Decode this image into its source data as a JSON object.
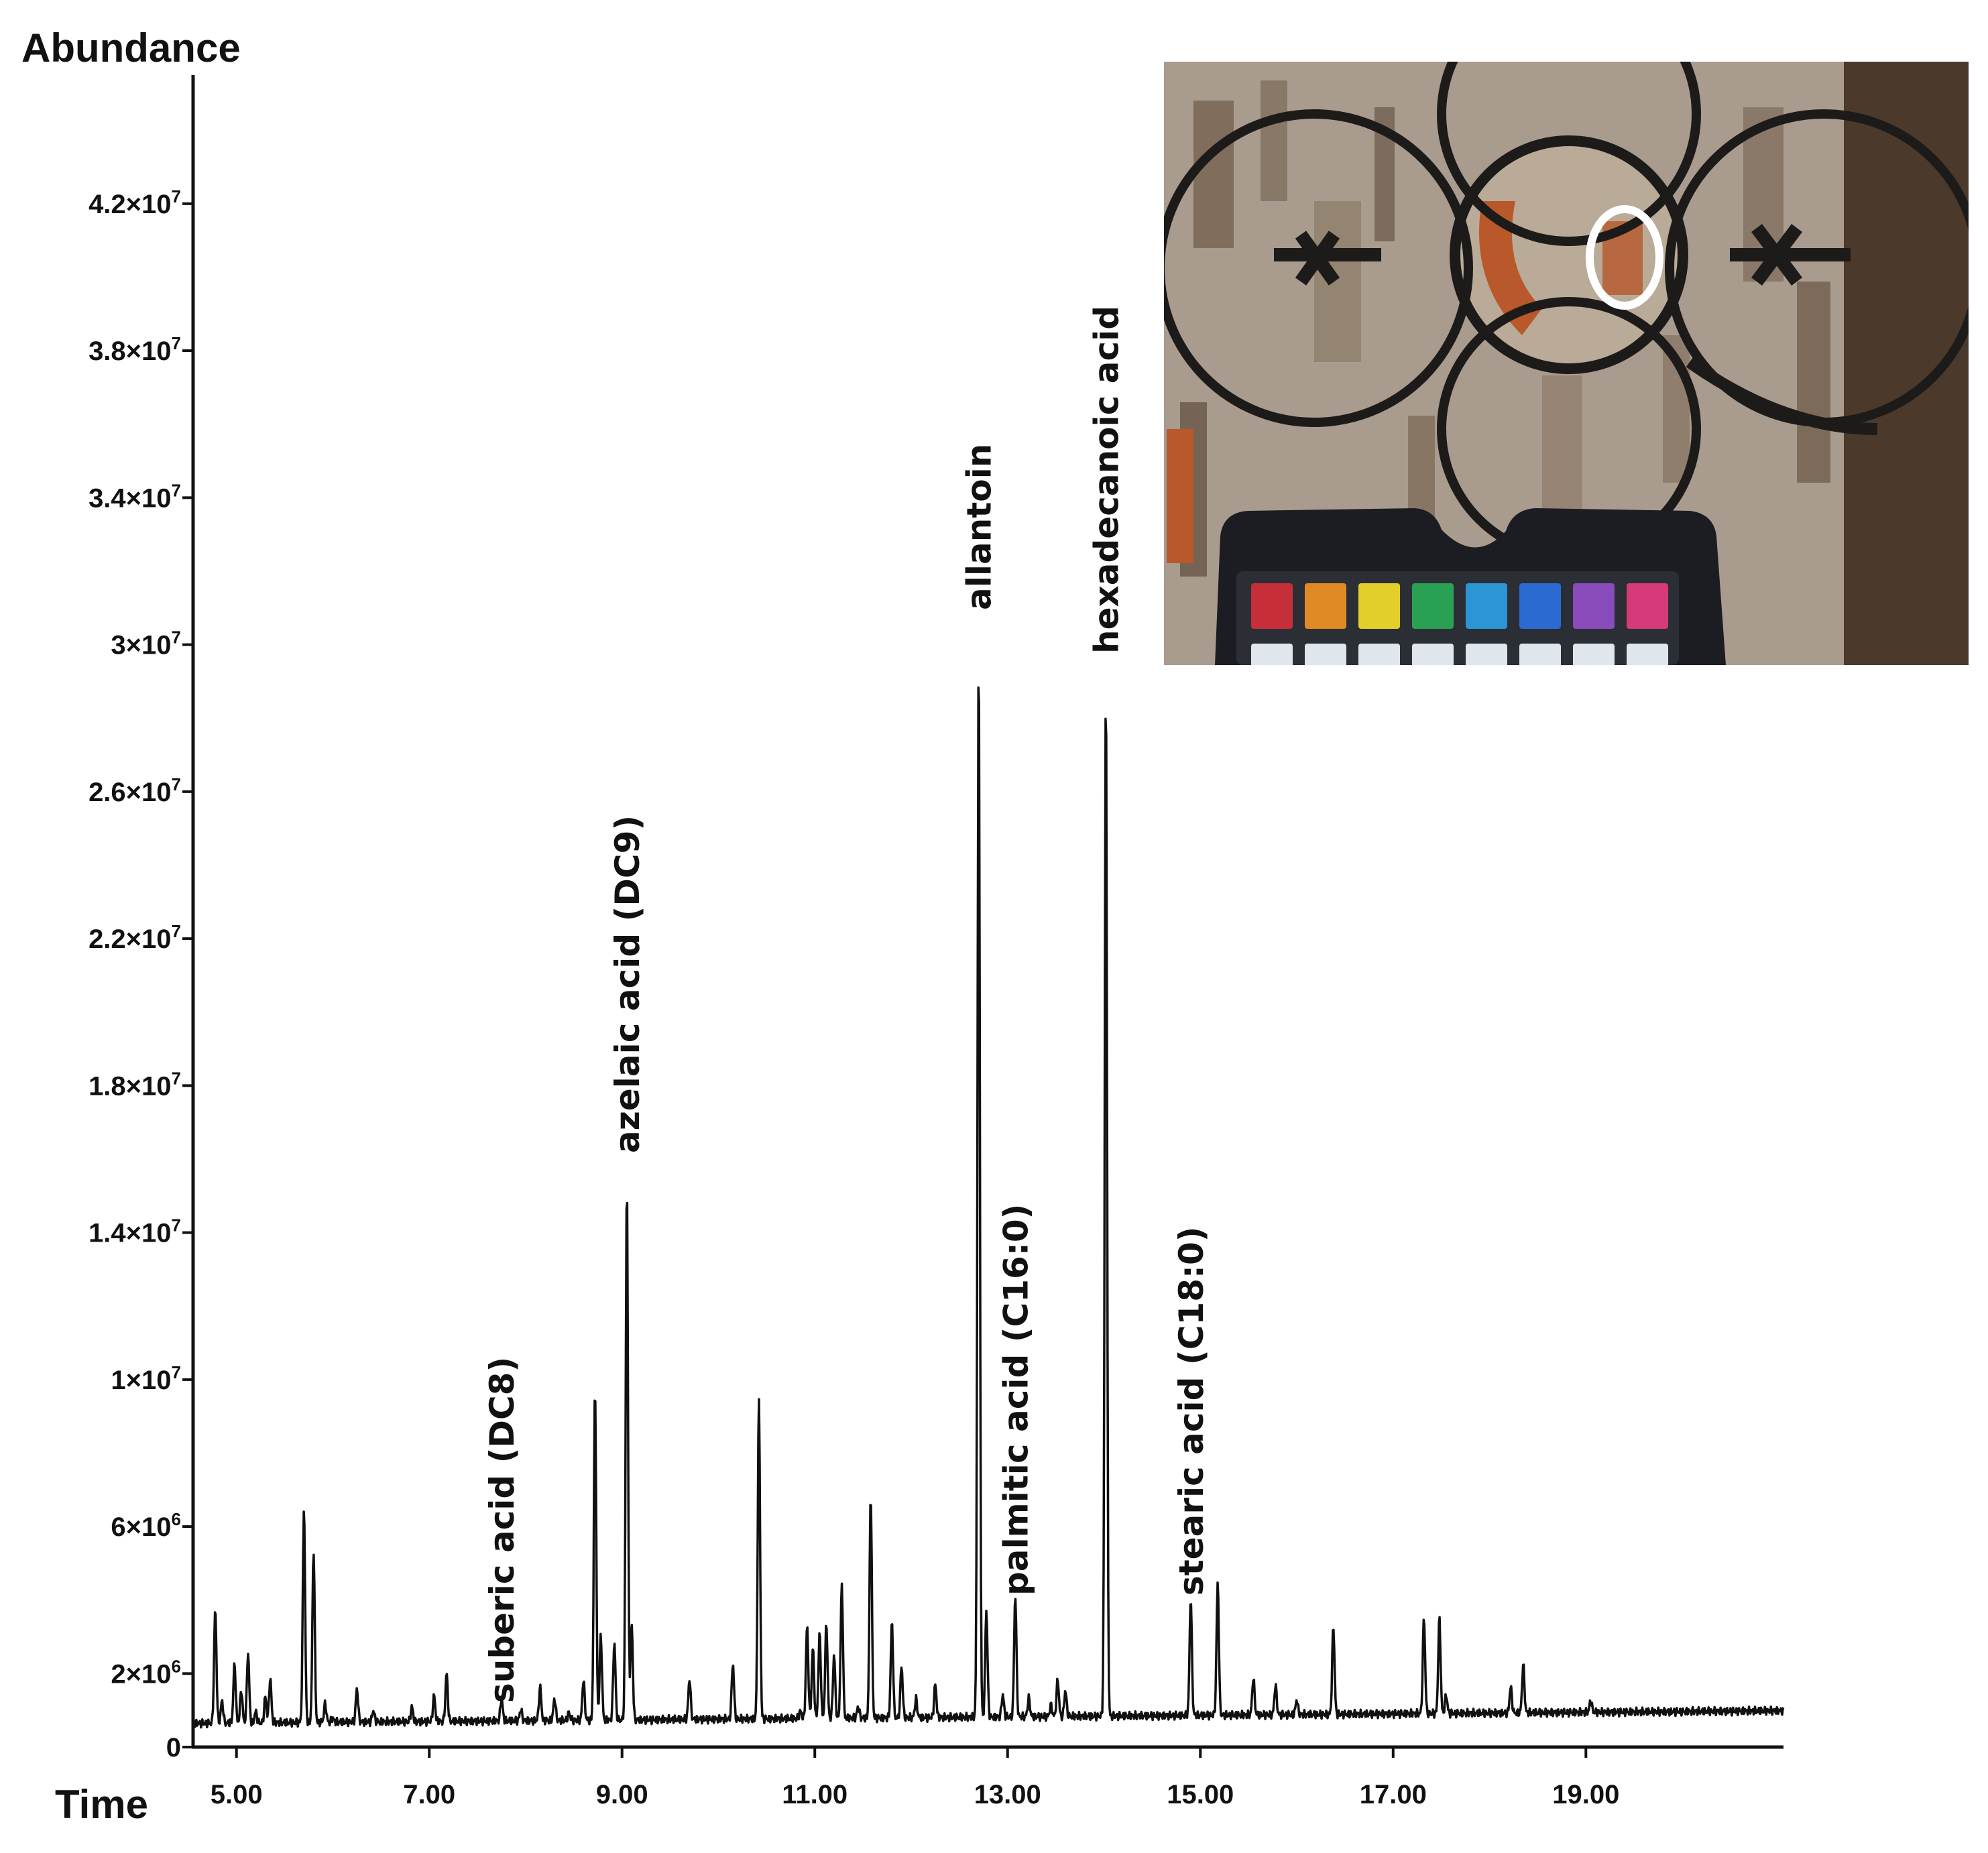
{
  "chart_data": {
    "type": "line",
    "ylabel": "Abundance",
    "xlabel": "Time",
    "xlim": [
      4.55,
      21.05
    ],
    "ylim": [
      0,
      45500000
    ],
    "grid": false,
    "legend": "none",
    "x_ticks": [
      {
        "value": 5.0,
        "label": "5.00"
      },
      {
        "value": 7.0,
        "label": "7.00"
      },
      {
        "value": 9.0,
        "label": "9.00"
      },
      {
        "value": 11.0,
        "label": "11.00"
      },
      {
        "value": 13.0,
        "label": "13.00"
      },
      {
        "value": 15.0,
        "label": "15.00"
      },
      {
        "value": 17.0,
        "label": "17.00"
      },
      {
        "value": 19.0,
        "label": "19.00"
      }
    ],
    "y_ticks": [
      {
        "value": 0,
        "mant": "0",
        "exp": ""
      },
      {
        "value": 2000000,
        "mant": "2×10",
        "exp": "6"
      },
      {
        "value": 6000000,
        "mant": "6×10",
        "exp": "6"
      },
      {
        "value": 10000000,
        "mant": "1×10",
        "exp": "7"
      },
      {
        "value": 14000000,
        "mant": "1.4×10",
        "exp": "7"
      },
      {
        "value": 18000000,
        "mant": "1.8×10",
        "exp": "7"
      },
      {
        "value": 22000000,
        "mant": "2.2×10",
        "exp": "7"
      },
      {
        "value": 26000000,
        "mant": "2.6×10",
        "exp": "7"
      },
      {
        "value": 30000000,
        "mant": "3×10",
        "exp": "7"
      },
      {
        "value": 34000000,
        "mant": "3.4×10",
        "exp": "7"
      },
      {
        "value": 38000000,
        "mant": "3.8×10",
        "exp": "7"
      },
      {
        "value": 42000000,
        "mant": "4.2×10",
        "exp": "7"
      }
    ],
    "baseline": 900000,
    "peaks": [
      {
        "x": 4.78,
        "y": 4000000
      },
      {
        "x": 4.85,
        "y": 1500000
      },
      {
        "x": 4.98,
        "y": 2500000
      },
      {
        "x": 5.05,
        "y": 1800000
      },
      {
        "x": 5.12,
        "y": 2800000
      },
      {
        "x": 5.2,
        "y": 1200000
      },
      {
        "x": 5.3,
        "y": 1600000
      },
      {
        "x": 5.35,
        "y": 2100000
      },
      {
        "x": 5.5,
        "y": 900000
      },
      {
        "x": 5.7,
        "y": 6800000
      },
      {
        "x": 5.8,
        "y": 5600000
      },
      {
        "x": 5.92,
        "y": 1400000
      },
      {
        "x": 6.0,
        "y": 1000000
      },
      {
        "x": 6.1,
        "y": 800000
      },
      {
        "x": 6.25,
        "y": 1800000
      },
      {
        "x": 6.42,
        "y": 1200000
      },
      {
        "x": 6.75,
        "y": 900000
      },
      {
        "x": 6.82,
        "y": 1300000
      },
      {
        "x": 7.05,
        "y": 1600000
      },
      {
        "x": 7.18,
        "y": 2200000
      },
      {
        "x": 7.32,
        "y": 900000
      },
      {
        "x": 7.75,
        "y": 1500000
      },
      {
        "x": 7.95,
        "y": 1200000
      },
      {
        "x": 8.15,
        "y": 1800000
      },
      {
        "x": 8.3,
        "y": 1500000
      },
      {
        "x": 8.45,
        "y": 1100000
      },
      {
        "x": 8.6,
        "y": 2000000
      },
      {
        "x": 8.72,
        "y": 10000000
      },
      {
        "x": 8.78,
        "y": 3200000
      },
      {
        "x": 8.92,
        "y": 3000000
      },
      {
        "x": 9.05,
        "y": 15500000
      },
      {
        "x": 9.1,
        "y": 3500000
      },
      {
        "x": 9.45,
        "y": 900000
      },
      {
        "x": 9.7,
        "y": 2000000
      },
      {
        "x": 10.15,
        "y": 2400000
      },
      {
        "x": 10.42,
        "y": 9600000
      },
      {
        "x": 10.85,
        "y": 1100000
      },
      {
        "x": 10.92,
        "y": 3400000
      },
      {
        "x": 10.98,
        "y": 2800000
      },
      {
        "x": 11.05,
        "y": 3200000
      },
      {
        "x": 11.12,
        "y": 3500000
      },
      {
        "x": 11.2,
        "y": 2600000
      },
      {
        "x": 11.28,
        "y": 4500000
      },
      {
        "x": 11.45,
        "y": 1200000
      },
      {
        "x": 11.58,
        "y": 7000000
      },
      {
        "x": 11.8,
        "y": 3500000
      },
      {
        "x": 11.9,
        "y": 2300000
      },
      {
        "x": 12.05,
        "y": 1400000
      },
      {
        "x": 12.25,
        "y": 1800000
      },
      {
        "x": 12.7,
        "y": 29800000
      },
      {
        "x": 12.78,
        "y": 3800000
      },
      {
        "x": 12.95,
        "y": 1500000
      },
      {
        "x": 13.08,
        "y": 4200000
      },
      {
        "x": 13.22,
        "y": 1400000
      },
      {
        "x": 13.45,
        "y": 1200000
      },
      {
        "x": 13.52,
        "y": 1900000
      },
      {
        "x": 13.6,
        "y": 1600000
      },
      {
        "x": 14.02,
        "y": 29000000
      },
      {
        "x": 14.3,
        "y": 900000
      },
      {
        "x": 14.9,
        "y": 4100000
      },
      {
        "x": 15.18,
        "y": 4500000
      },
      {
        "x": 15.55,
        "y": 1900000
      },
      {
        "x": 15.78,
        "y": 1700000
      },
      {
        "x": 16.0,
        "y": 1300000
      },
      {
        "x": 16.38,
        "y": 3300000
      },
      {
        "x": 16.62,
        "y": 600000
      },
      {
        "x": 17.32,
        "y": 3500000
      },
      {
        "x": 17.48,
        "y": 3500000
      },
      {
        "x": 17.55,
        "y": 1400000
      },
      {
        "x": 17.9,
        "y": 700000
      },
      {
        "x": 18.05,
        "y": 800000
      },
      {
        "x": 18.22,
        "y": 1600000
      },
      {
        "x": 18.35,
        "y": 2200000
      },
      {
        "x": 18.85,
        "y": 700000
      },
      {
        "x": 19.05,
        "y": 1200000
      },
      {
        "x": 19.75,
        "y": 800000
      },
      {
        "x": 20.35,
        "y": 500000
      },
      {
        "x": 20.95,
        "y": 300000
      }
    ],
    "annotations": [
      {
        "text": "suberic acid (DC8)",
        "x": 7.75
      },
      {
        "text": "azelaic acid (DC9)",
        "x": 9.05
      },
      {
        "text": "allantoin",
        "x": 12.7
      },
      {
        "text": "palmitic acid (C16:0)",
        "x": 13.08
      },
      {
        "text": "hexadecanoic acid",
        "x": 14.02
      },
      {
        "text": "stearic acid (C18:0)",
        "x": 14.9
      }
    ],
    "inset": {
      "colors": [
        "#c62f3a",
        "#e08a25",
        "#e3cf2a",
        "#2aa055",
        "#2b95d6",
        "#2b6bd1",
        "#8a4bbd",
        "#d63a78"
      ],
      "outline": "#1d1b1a",
      "paint_red": "#b8582b",
      "ground": "#a99c8e",
      "marker": "#ffffff"
    }
  }
}
